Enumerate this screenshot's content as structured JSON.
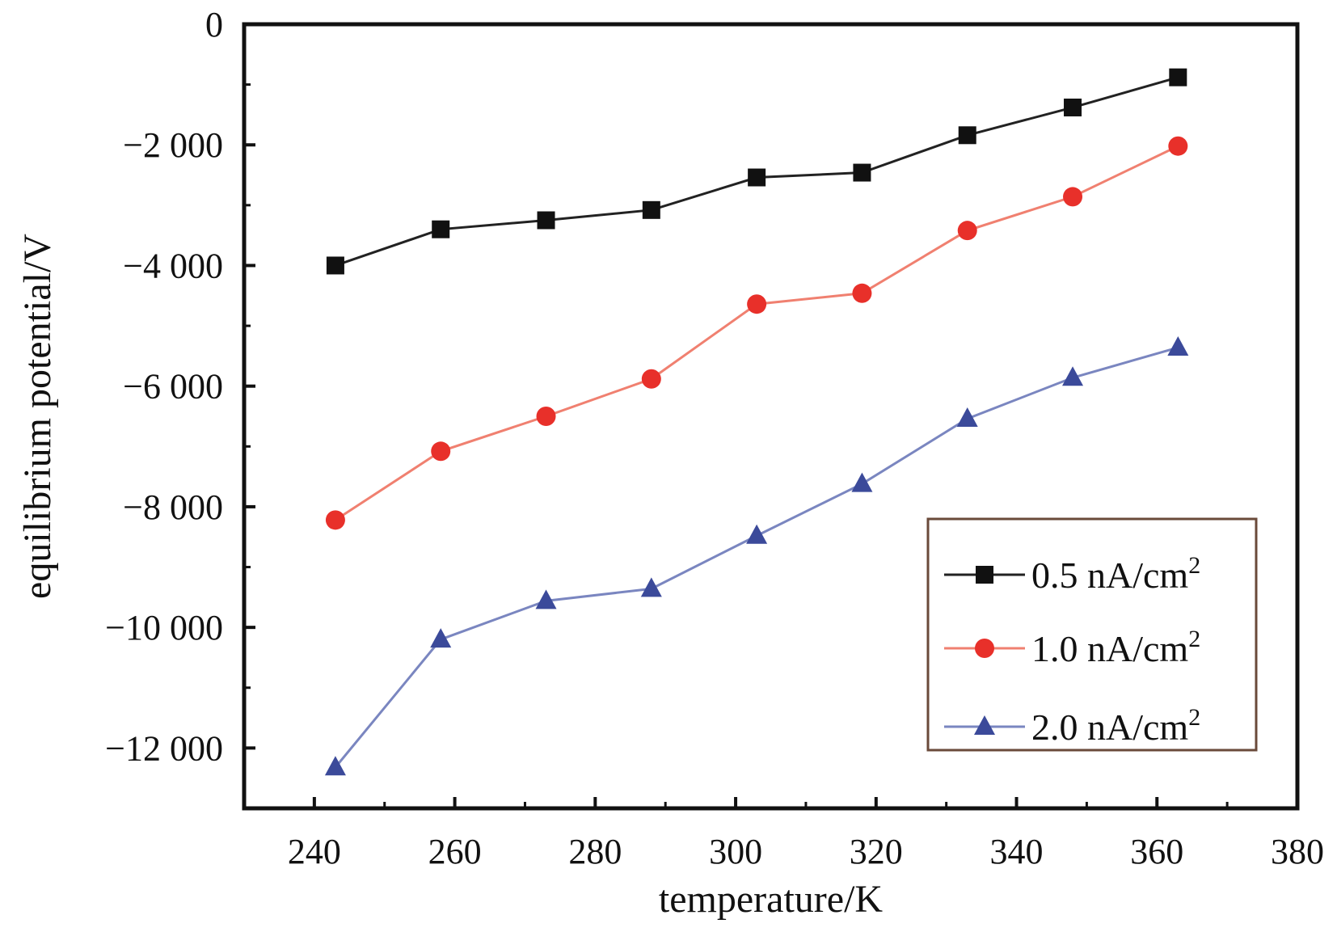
{
  "chart_data": {
    "type": "line",
    "xlabel": "temperature/K",
    "ylabel": "equilibrium potential/V",
    "xlim": [
      230,
      380
    ],
    "ylim": [
      -13000,
      0
    ],
    "xticks": [
      240,
      260,
      280,
      300,
      320,
      340,
      360,
      380
    ],
    "xtick_labels": [
      "240",
      "260",
      "280",
      "300",
      "320",
      "340",
      "360",
      "380"
    ],
    "yticks": [
      0,
      -2000,
      -4000,
      -6000,
      -8000,
      -10000,
      -12000
    ],
    "ytick_labels": [
      "0",
      "−2 000",
      "−4 000",
      "−6 000",
      "−8 000",
      "−10 000",
      "−12 000"
    ],
    "x": [
      243,
      258,
      273,
      288,
      303,
      318,
      333,
      348,
      363
    ],
    "series": [
      {
        "name": "0.5 nA/cm²",
        "label_main": "0.5 nA/cm",
        "label_sup": "2",
        "marker": "square",
        "color": "#111111",
        "line_color": "#222222",
        "values": [
          -4000,
          -3400,
          -3250,
          -3080,
          -2540,
          -2460,
          -1840,
          -1380,
          -880
        ]
      },
      {
        "name": "1.0 nA/cm²",
        "label_main": "1.0 nA/cm",
        "label_sup": "2",
        "marker": "circle",
        "color": "#e8302a",
        "line_color": "#f08070",
        "values": [
          -8220,
          -7080,
          -6500,
          -5880,
          -4640,
          -4460,
          -3420,
          -2860,
          -2020
        ]
      },
      {
        "name": "2.0 nA/cm²",
        "label_main": "2.0 nA/cm",
        "label_sup": "2",
        "marker": "triangle",
        "color": "#3b4a9a",
        "line_color": "#7a86c0",
        "values": [
          -12320,
          -10200,
          -9560,
          -9360,
          -8480,
          -7620,
          -6540,
          -5860,
          -5360
        ]
      }
    ],
    "legend_position": "bottom-right",
    "grid": false
  }
}
